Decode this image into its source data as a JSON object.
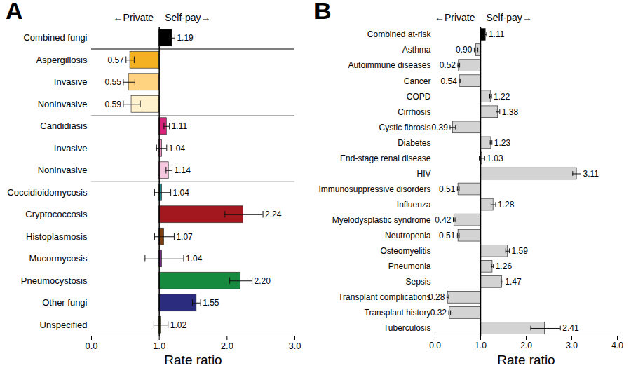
{
  "chart_data": [
    {
      "type": "bar",
      "orientation": "horizontal",
      "title": "A",
      "left_annotation": "←Private",
      "right_annotation": "Self-pay→",
      "x_label": "Rate ratio",
      "xlim": [
        0,
        3
      ],
      "xticks": [
        0,
        1,
        2,
        3
      ],
      "baseline": 1,
      "data_labels": true,
      "group_starts": [
        1,
        4,
        7
      ],
      "categories": [
        "Combined fungi",
        "Aspergillosis",
        "Invasive",
        "Noninvasive",
        "Candidiasis",
        "Invasive",
        "Noninvasive",
        "Coccidioidomycosis",
        "Cryptococcosis",
        "Histoplasmosis",
        "Mucormycosis",
        "Pneumocystosis",
        "Other fungi",
        "Unspecified"
      ],
      "values": [
        1.19,
        0.57,
        0.55,
        0.59,
        1.11,
        1.04,
        1.14,
        1.04,
        2.24,
        1.07,
        1.04,
        2.2,
        1.55,
        1.02
      ],
      "value_labels": [
        "1.19",
        "0.57",
        "0.55",
        "0.59",
        "1.11",
        "1.04",
        "1.14",
        "1.04",
        "2.24",
        "1.07",
        "1.04",
        "2.20",
        "1.55",
        "1.02"
      ],
      "error_low": [
        1.15,
        0.51,
        0.47,
        0.47,
        1.07,
        0.96,
        1.1,
        0.93,
        1.97,
        0.93,
        0.79,
        2.04,
        1.49,
        0.92
      ],
      "error_high": [
        1.23,
        0.63,
        0.64,
        0.72,
        1.15,
        1.11,
        1.19,
        1.17,
        2.53,
        1.22,
        1.36,
        2.37,
        1.61,
        1.13
      ],
      "colors": [
        "#000000",
        "#f4b223",
        "#ffd37f",
        "#fff2cc",
        "#d6247a",
        "#f08dc0",
        "#f7c6df",
        "#1a8a8a",
        "#a3171e",
        "#7b3f12",
        "#7b2d8e",
        "#168a3e",
        "#2c2c7e",
        "#8b8b00"
      ]
    },
    {
      "type": "bar",
      "orientation": "horizontal",
      "title": "B",
      "left_annotation": "←Private",
      "right_annotation": "Self-pay→",
      "x_label": "Rate ratio",
      "xlim": [
        0,
        4
      ],
      "xticks": [
        0,
        1,
        2,
        3,
        4
      ],
      "baseline": 1,
      "data_labels": true,
      "categories": [
        "Combined at-risk",
        "Asthma",
        "Autoimmune diseases",
        "Cancer",
        "COPD",
        "Cirrhosis",
        "Cystic fibrosis",
        "Diabetes",
        "End-stage renal disease",
        "HIV",
        "Immunosuppressive disorders",
        "Influenza",
        "Myelodysplastic syndrome",
        "Neutropenia",
        "Osteomyelitis",
        "Pneumonia",
        "Sepsis",
        "Transplant complications",
        "Transplant history",
        "Tuberculosis"
      ],
      "values": [
        1.11,
        0.9,
        0.52,
        0.54,
        1.22,
        1.38,
        0.39,
        1.23,
        1.03,
        3.11,
        0.51,
        1.28,
        0.42,
        0.51,
        1.59,
        1.26,
        1.47,
        0.28,
        0.32,
        2.41
      ],
      "value_labels": [
        "1.11",
        "0.90",
        "0.52",
        "0.54",
        "1.22",
        "1.38",
        "0.39",
        "1.23",
        "1.03",
        "3.11",
        "0.51",
        "1.28",
        "0.42",
        "0.51",
        "1.59",
        "1.26",
        "1.47",
        "0.28",
        "0.32",
        "2.41"
      ],
      "error_low": [
        1.09,
        0.86,
        0.5,
        0.53,
        1.2,
        1.34,
        0.33,
        1.21,
        0.97,
        3.02,
        0.49,
        1.23,
        0.4,
        0.49,
        1.55,
        1.24,
        1.45,
        0.26,
        0.3,
        2.1
      ],
      "error_high": [
        1.13,
        0.94,
        0.54,
        0.55,
        1.24,
        1.42,
        0.45,
        1.25,
        1.09,
        3.2,
        0.53,
        1.33,
        0.44,
        0.53,
        1.63,
        1.28,
        1.49,
        0.3,
        0.34,
        2.75
      ],
      "colors": [
        "#000000",
        "#d3d3d3",
        "#d3d3d3",
        "#d3d3d3",
        "#d3d3d3",
        "#d3d3d3",
        "#d3d3d3",
        "#d3d3d3",
        "#d3d3d3",
        "#d3d3d3",
        "#d3d3d3",
        "#d3d3d3",
        "#d3d3d3",
        "#d3d3d3",
        "#d3d3d3",
        "#d3d3d3",
        "#d3d3d3",
        "#d3d3d3",
        "#d3d3d3",
        "#d3d3d3"
      ]
    }
  ]
}
